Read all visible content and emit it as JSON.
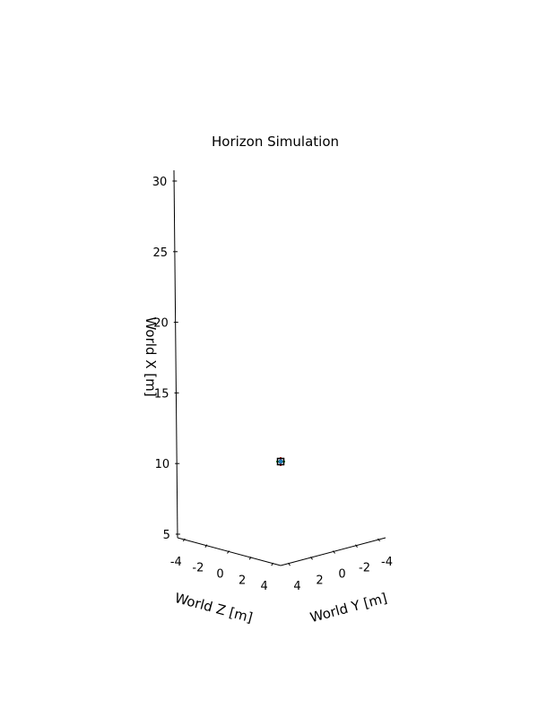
{
  "chart_data": {
    "type": "scatter",
    "projection": "3d",
    "title": "Horizon Simulation",
    "axes": {
      "x": {
        "label": "World X [m]",
        "ticks": [
          5,
          10,
          15,
          20,
          25,
          30
        ],
        "tick_labels": [
          "5",
          "10",
          "15",
          "20",
          "25",
          "30"
        ],
        "range": [
          4.5,
          30.7
        ]
      },
      "y": {
        "label": "World Y [m]",
        "ticks": [
          4,
          2,
          0,
          -2,
          -4
        ],
        "tick_labels": [
          "4",
          "2",
          "0",
          "-2",
          "-4"
        ]
      },
      "z": {
        "label": "World Z [m]",
        "ticks": [
          -4,
          -2,
          0,
          2,
          4
        ],
        "tick_labels": [
          "-4",
          "-2",
          "0",
          "2",
          "4"
        ]
      }
    },
    "grid": false,
    "series": [
      {
        "points": [
          {
            "x": 10,
            "y": 0,
            "z": 0
          }
        ],
        "marker": "plus",
        "colors": [
          "#d62728",
          "#2ca02c",
          "#1f77b4",
          "#000000"
        ]
      }
    ]
  }
}
